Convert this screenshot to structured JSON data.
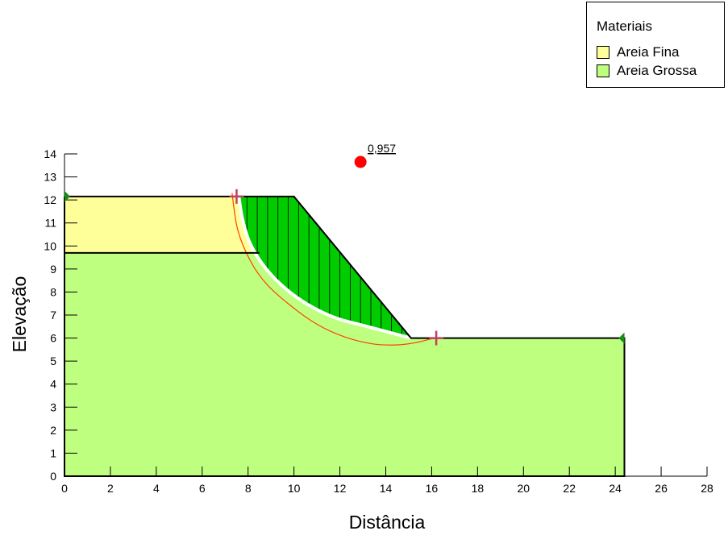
{
  "chart_data": {
    "type": "slope-stability",
    "xlabel": "Distância",
    "ylabel": "Elevação",
    "xlim": [
      0,
      28
    ],
    "ylim": [
      0,
      14
    ],
    "xticks": [
      0,
      2,
      4,
      6,
      8,
      10,
      12,
      14,
      16,
      18,
      20,
      22,
      24,
      26,
      28
    ],
    "yticks": [
      0,
      1,
      2,
      3,
      4,
      5,
      6,
      7,
      8,
      9,
      10,
      11,
      12,
      13,
      14
    ],
    "factor_of_safety": {
      "label": "0,957",
      "x": 12.9,
      "y": 13.65
    },
    "materials": [
      {
        "name": "Areia Fina",
        "color": "#ffff99",
        "polygon": [
          [
            0,
            12.15
          ],
          [
            7.6,
            12.15
          ],
          [
            8.5,
            9.7
          ],
          [
            0,
            9.7
          ]
        ]
      },
      {
        "name": "Areia Grossa",
        "color": "#bfff80",
        "polygon": [
          [
            0,
            0
          ],
          [
            24.4,
            0
          ],
          [
            24.4,
            6
          ],
          [
            15.1,
            6
          ],
          [
            10,
            12.15
          ],
          [
            7.6,
            12.15
          ],
          [
            8.5,
            9.7
          ],
          [
            0,
            9.7
          ]
        ]
      }
    ],
    "boundaries": [
      [
        [
          0,
          12.15
        ],
        [
          10,
          12.15
        ],
        [
          15.1,
          6
        ],
        [
          24.4,
          6
        ],
        [
          24.4,
          0
        ],
        [
          0,
          0
        ],
        [
          0,
          12.15
        ]
      ],
      [
        [
          0,
          9.7
        ],
        [
          8.5,
          9.7
        ]
      ]
    ],
    "sliding_mass_color": "#00cc00",
    "slip_surface": [
      [
        7.6,
        12.15
      ],
      [
        7.75,
        11.2
      ],
      [
        8.05,
        10.2
      ],
      [
        8.6,
        9.25
      ],
      [
        9.4,
        8.35
      ],
      [
        10.45,
        7.55
      ],
      [
        11.75,
        6.9
      ],
      [
        13.2,
        6.5
      ],
      [
        15.1,
        6
      ]
    ],
    "slice_x": [
      7.95,
      8.4,
      8.85,
      9.3,
      9.75,
      10.2,
      10.65,
      11.1,
      11.55,
      12.0,
      12.45,
      12.9,
      13.35,
      13.8,
      14.25,
      14.7
    ],
    "critical_circle": [
      [
        7.3,
        12.3
      ],
      [
        7.55,
        10.7
      ],
      [
        8.1,
        9.35
      ],
      [
        8.8,
        8.35
      ],
      [
        9.8,
        7.45
      ],
      [
        11.0,
        6.6
      ],
      [
        12.2,
        6.05
      ],
      [
        13.4,
        5.75
      ],
      [
        14.4,
        5.7
      ],
      [
        15.3,
        5.8
      ],
      [
        16.1,
        6.0
      ]
    ],
    "entry_point": [
      7.5,
      12.15
    ],
    "exit_point": [
      16.2,
      6.0
    ],
    "piezometric_markers": [
      [
        0,
        12.15
      ],
      [
        24.4,
        6
      ]
    ]
  },
  "legend": {
    "title": "Materiais",
    "items": [
      {
        "label": "Areia Fina",
        "color": "#ffff99"
      },
      {
        "label": "Areia Grossa",
        "color": "#bfff80"
      }
    ]
  }
}
